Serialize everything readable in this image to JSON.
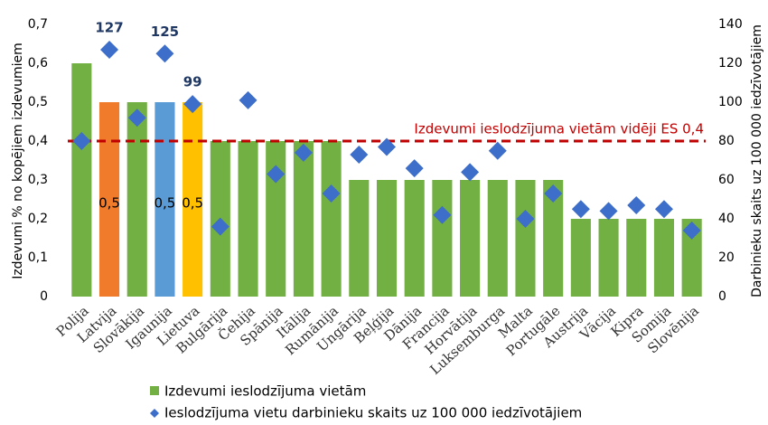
{
  "chart_data": {
    "type": "bar",
    "categories": [
      "Polija",
      "Latvija",
      "Slovākija",
      "Igaunija",
      "Lietuva",
      "Bulgārija",
      "Čehija",
      "Spānija",
      "Itālija",
      "Rumānija",
      "Ungārija",
      "Beļģija",
      "Dānija",
      "Francija",
      "Horvātija",
      "Luksemburga",
      "Malta",
      "Portugāle",
      "Austrija",
      "Vācija",
      "Kipra",
      "Somija",
      "Slovēnija"
    ],
    "series": [
      {
        "name": "Izdevumi ieslodzījuma vietām",
        "color": "#72b043",
        "colors": [
          "#72b043",
          "#f07b2a",
          "#72b043",
          "#5b9bd5",
          "#ffc000",
          "#72b043",
          "#72b043",
          "#72b043",
          "#72b043",
          "#72b043",
          "#72b043",
          "#72b043",
          "#72b043",
          "#72b043",
          "#72b043",
          "#72b043",
          "#72b043",
          "#72b043",
          "#72b043",
          "#72b043",
          "#72b043",
          "#72b043",
          "#72b043"
        ],
        "values": [
          0.6,
          0.5,
          0.5,
          0.5,
          0.5,
          0.4,
          0.4,
          0.4,
          0.4,
          0.4,
          0.3,
          0.3,
          0.3,
          0.3,
          0.3,
          0.3,
          0.3,
          0.3,
          0.2,
          0.2,
          0.2,
          0.2,
          0.2
        ],
        "value_labels": [
          null,
          "0,5",
          null,
          "0,5",
          "0,5",
          null,
          null,
          null,
          null,
          null,
          null,
          null,
          null,
          null,
          null,
          null,
          null,
          null,
          null,
          null,
          null,
          null,
          null
        ]
      },
      {
        "name": "Ieslodzījuma vietu darbinieku skaits uz 100 000 iedzīvotājiem",
        "color": "#3d6ec9",
        "axis": "y2",
        "marker": "diamond",
        "values": [
          80,
          127,
          92,
          125,
          99,
          36,
          101,
          63,
          74,
          53,
          73,
          77,
          66,
          42,
          64,
          75,
          40,
          53,
          45,
          44,
          47,
          45,
          34
        ],
        "value_labels": [
          null,
          "127",
          null,
          "125",
          "99",
          null,
          null,
          null,
          null,
          null,
          null,
          null,
          null,
          null,
          null,
          null,
          null,
          null,
          null,
          null,
          null,
          null,
          null
        ]
      }
    ],
    "ylabel": "Izdevumi % no kopējiem izdevumiem",
    "y2label": "Darbinieku skaits uz 100 000 iedzīvotājiem",
    "ylim": [
      0,
      0.7
    ],
    "yticks": [
      0,
      {
        "value": 0.1,
        "label": "0,1"
      },
      {
        "value": 0.2,
        "label": "0,2"
      },
      {
        "value": 0.3,
        "label": "0,3"
      },
      {
        "value": 0.4,
        "label": "0,4"
      },
      {
        "value": 0.5,
        "label": "0,5"
      },
      {
        "value": 0.6,
        "label": "0,6"
      },
      {
        "value": 0.7,
        "label": "0,7"
      }
    ],
    "y2lim": [
      0,
      140
    ],
    "y2ticks": [
      0,
      20,
      40,
      60,
      80,
      100,
      120,
      140
    ],
    "reference_line": {
      "value": 0.4,
      "label": "Izdevumi ieslodzījuma vietām vidēji ES 0,4",
      "color": "#c00000"
    },
    "legend": "bottom"
  }
}
